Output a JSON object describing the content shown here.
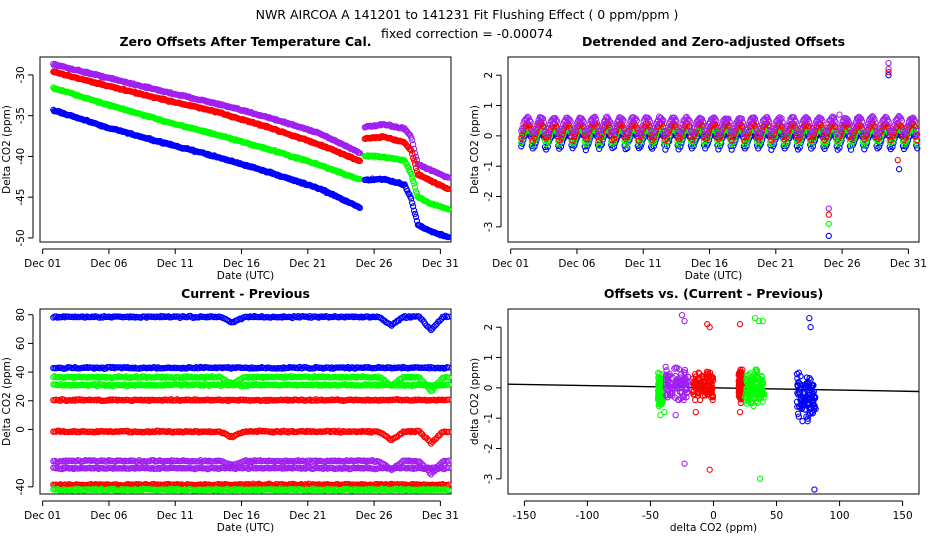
{
  "figure": {
    "title": "NWR   AIRCOA A   141201 to 141231   Fit Flushing Effect ( 0 ppm/ppm )",
    "subtitle": "fixed correction = -0.00074"
  },
  "colors": {
    "blue": "#0000ff",
    "green": "#00ff00",
    "red": "#ff0000",
    "purple": "#a020f0",
    "black": "#000000"
  },
  "chart_data": [
    {
      "id": "p1",
      "type": "scatter",
      "title": "Zero Offsets After Temperature Cal.",
      "xlabel": "Date (UTC)",
      "ylabel": "Delta CO2 (ppm)",
      "xlim": [
        1,
        32
      ],
      "ylim": [
        -50.5,
        -27.8
      ],
      "xticks": [
        {
          "v": 1.2,
          "label": "Dec 01"
        },
        {
          "v": 6.2,
          "label": "Dec 06"
        },
        {
          "v": 11.2,
          "label": "Dec 11"
        },
        {
          "v": 16.2,
          "label": "Dec 16"
        },
        {
          "v": 21.2,
          "label": "Dec 21"
        },
        {
          "v": 26.2,
          "label": "Dec 26"
        },
        {
          "v": 31.2,
          "label": "Dec 31"
        }
      ],
      "yticks": [
        {
          "v": -30,
          "label": "-30"
        },
        {
          "v": -35,
          "label": "-35"
        },
        {
          "v": -40,
          "label": "-40"
        },
        {
          "v": -45,
          "label": "-45"
        },
        {
          "v": -50,
          "label": "-50"
        }
      ],
      "series": [
        {
          "name": "purple",
          "color": "purple",
          "points": [
            [
              2.0,
              -28.7
            ],
            [
              6,
              -30.3
            ],
            [
              10,
              -31.9
            ],
            [
              14,
              -33.4
            ],
            [
              18,
              -35.1
            ],
            [
              22,
              -37.1
            ],
            [
              25.2,
              -39.6
            ],
            [
              25.5,
              -36.4
            ],
            [
              27,
              -36.1
            ],
            [
              28.5,
              -36.6
            ],
            [
              29.0,
              -37.6
            ],
            [
              29.5,
              -41.0
            ],
            [
              30.5,
              -41.7
            ],
            [
              31.8,
              -42.6
            ]
          ]
        },
        {
          "name": "red",
          "color": "red",
          "points": [
            [
              2.0,
              -29.6
            ],
            [
              6,
              -31.3
            ],
            [
              10,
              -32.9
            ],
            [
              14,
              -34.4
            ],
            [
              18,
              -36.3
            ],
            [
              22,
              -38.5
            ],
            [
              25.2,
              -40.6
            ],
            [
              25.5,
              -37.8
            ],
            [
              27,
              -37.6
            ],
            [
              28.5,
              -38.3
            ],
            [
              29.0,
              -39.3
            ],
            [
              29.5,
              -42.2
            ],
            [
              30.5,
              -43.0
            ],
            [
              31.8,
              -44.0
            ]
          ]
        },
        {
          "name": "green",
          "color": "green",
          "points": [
            [
              2.0,
              -31.6
            ],
            [
              6,
              -33.6
            ],
            [
              10,
              -35.5
            ],
            [
              14,
              -37.2
            ],
            [
              18,
              -39.0
            ],
            [
              22,
              -41.0
            ],
            [
              25.2,
              -42.9
            ],
            [
              25.5,
              -39.9
            ],
            [
              27,
              -40.1
            ],
            [
              28.5,
              -40.5
            ],
            [
              29.0,
              -42.2
            ],
            [
              29.5,
              -45.0
            ],
            [
              30.5,
              -45.8
            ],
            [
              31.8,
              -46.5
            ]
          ]
        },
        {
          "name": "blue",
          "color": "blue",
          "points": [
            [
              2.0,
              -34.3
            ],
            [
              6,
              -36.4
            ],
            [
              10,
              -38.2
            ],
            [
              14,
              -39.9
            ],
            [
              18,
              -41.8
            ],
            [
              22,
              -43.9
            ],
            [
              25.2,
              -46.3
            ],
            [
              25.5,
              -42.9
            ],
            [
              27,
              -42.8
            ],
            [
              28.5,
              -43.5
            ],
            [
              29.0,
              -45.2
            ],
            [
              29.5,
              -48.4
            ],
            [
              30.5,
              -49.2
            ],
            [
              31.8,
              -49.9
            ]
          ]
        }
      ]
    },
    {
      "id": "p2",
      "type": "scatter",
      "title": "Detrended and Zero-adjusted Offsets",
      "xlabel": "Date (UTC)",
      "ylabel": "Delta CO2 (ppm)",
      "xlim": [
        1,
        32
      ],
      "ylim": [
        -3.5,
        2.6
      ],
      "xticks": [
        {
          "v": 1.2,
          "label": "Dec 01"
        },
        {
          "v": 6.2,
          "label": "Dec 06"
        },
        {
          "v": 11.2,
          "label": "Dec 11"
        },
        {
          "v": 16.2,
          "label": "Dec 16"
        },
        {
          "v": 21.2,
          "label": "Dec 21"
        },
        {
          "v": 26.2,
          "label": "Dec 26"
        },
        {
          "v": 31.2,
          "label": "Dec 31"
        }
      ],
      "yticks": [
        {
          "v": 2,
          "label": "2"
        },
        {
          "v": 1,
          "label": "1"
        },
        {
          "v": 0,
          "label": "0"
        },
        {
          "v": -1,
          "label": "-1"
        },
        {
          "v": -2,
          "label": "-2"
        },
        {
          "v": -3,
          "label": "-3"
        }
      ],
      "daily_pattern": {
        "start_day": 2,
        "end_day": 32,
        "base": {
          "purple": 0.3,
          "red": 0.1,
          "green": -0.05,
          "blue": -0.2
        },
        "amplitude": 0.45
      },
      "outliers": [
        {
          "color": "purple",
          "points": [
            [
              25.2,
              -2.4
            ],
            [
              29.7,
              2.4
            ],
            [
              29.7,
              2.2
            ],
            [
              25.6,
              0.6
            ],
            [
              26.0,
              0.7
            ]
          ]
        },
        {
          "color": "red",
          "points": [
            [
              25.2,
              -2.6
            ],
            [
              29.7,
              2.1
            ],
            [
              30.4,
              -0.8
            ]
          ]
        },
        {
          "color": "green",
          "points": [
            [
              25.2,
              -2.9
            ],
            [
              25.8,
              0.0
            ]
          ]
        },
        {
          "color": "blue",
          "points": [
            [
              25.2,
              -3.3
            ],
            [
              29.7,
              2.0
            ],
            [
              30.5,
              -1.1
            ]
          ]
        }
      ]
    },
    {
      "id": "p3",
      "type": "scatter",
      "title": "Current - Previous",
      "xlabel": "Date (UTC)",
      "ylabel": "Delta CO2 (ppm)",
      "xlim": [
        1,
        32
      ],
      "ylim": [
        -45,
        84
      ],
      "xticks": [
        {
          "v": 1.2,
          "label": "Dec 01"
        },
        {
          "v": 6.2,
          "label": "Dec 06"
        },
        {
          "v": 11.2,
          "label": "Dec 11"
        },
        {
          "v": 16.2,
          "label": "Dec 16"
        },
        {
          "v": 21.2,
          "label": "Dec 21"
        },
        {
          "v": 26.2,
          "label": "Dec 26"
        },
        {
          "v": 31.2,
          "label": "Dec 31"
        }
      ],
      "yticks": [
        {
          "v": 80,
          "label": "80"
        },
        {
          "v": 60,
          "label": "60"
        },
        {
          "v": 40,
          "label": "40"
        },
        {
          "v": 20,
          "label": "20"
        },
        {
          "v": 0,
          "label": "0"
        },
        {
          "v": -40,
          "label": "-40"
        }
      ],
      "series": [
        {
          "name": "blue-high",
          "color": "blue",
          "level": 78.5,
          "dips": [
            [
              15.5,
              -4
            ],
            [
              27.5,
              -6
            ],
            [
              30.5,
              -9
            ]
          ]
        },
        {
          "name": "blue-low",
          "color": "blue",
          "level": 43,
          "dips": []
        },
        {
          "name": "green-high",
          "color": "green",
          "level": 36.5,
          "dips": [
            [
              15.5,
              -5
            ],
            [
              27.5,
              -6
            ],
            [
              30.5,
              -10
            ]
          ]
        },
        {
          "name": "green-mid",
          "color": "green",
          "level": 31,
          "dips": []
        },
        {
          "name": "red-high",
          "color": "red",
          "level": 20.5,
          "dips": []
        },
        {
          "name": "red-low",
          "color": "red",
          "level": -1.5,
          "dips": [
            [
              15.5,
              -4
            ],
            [
              27.5,
              -6
            ],
            [
              30.5,
              -8
            ]
          ]
        },
        {
          "name": "purple-high",
          "color": "purple",
          "level": -22,
          "dips": [
            [
              15.5,
              -3
            ],
            [
              27.5,
              -6
            ],
            [
              30.5,
              -9
            ]
          ]
        },
        {
          "name": "purple-low",
          "color": "purple",
          "level": -27,
          "dips": []
        },
        {
          "name": "red-bottom",
          "color": "red",
          "level": -38.5,
          "dips": []
        },
        {
          "name": "green-bottom",
          "color": "green",
          "level": -42,
          "dips": []
        }
      ]
    },
    {
      "id": "p4",
      "type": "scatter",
      "title": "Offsets vs. (Current - Previous)",
      "xlabel": "delta CO2 (ppm)",
      "ylabel": "delta CO2 (ppm)",
      "xlim": [
        -163,
        163
      ],
      "ylim": [
        -3.5,
        2.6
      ],
      "xticks": [
        {
          "v": -150,
          "label": "-150"
        },
        {
          "v": -100,
          "label": "-100"
        },
        {
          "v": -50,
          "label": "-50"
        },
        {
          "v": 0,
          "label": "0"
        },
        {
          "v": 50,
          "label": "50"
        },
        {
          "v": 100,
          "label": "100"
        },
        {
          "v": 150,
          "label": "150"
        }
      ],
      "yticks": [
        {
          "v": 2,
          "label": "2"
        },
        {
          "v": 1,
          "label": "1"
        },
        {
          "v": 0,
          "label": "0"
        },
        {
          "v": -1,
          "label": "-1"
        },
        {
          "v": -2,
          "label": "-2"
        },
        {
          "v": -3,
          "label": "-3"
        }
      ],
      "fit_line": {
        "x0": -163,
        "y0": 0.12,
        "x1": 163,
        "y1": -0.12
      },
      "clusters": [
        {
          "color": "green",
          "x_range": [
            -44,
            -40
          ],
          "y_range": [
            -0.6,
            0.5
          ],
          "outliers": [
            [
              -42,
              -0.9
            ],
            [
              -39,
              -0.8
            ]
          ]
        },
        {
          "color": "purple",
          "x_range": [
            -38,
            -20
          ],
          "y_range": [
            -0.5,
            0.7
          ],
          "outliers": [
            [
              -25,
              2.4
            ],
            [
              -23,
              2.2
            ],
            [
              -23,
              -2.5
            ],
            [
              -30,
              -0.9
            ]
          ]
        },
        {
          "color": "red",
          "x_range": [
            -16,
            0
          ],
          "y_range": [
            -0.4,
            0.6
          ],
          "outliers": [
            [
              -5,
              2.1
            ],
            [
              -3,
              2.0
            ],
            [
              -3,
              -2.7
            ],
            [
              -14,
              -0.8
            ]
          ]
        },
        {
          "color": "red",
          "x_range": [
            20,
            23
          ],
          "y_range": [
            -0.5,
            0.6
          ],
          "outliers": [
            [
              21,
              2.1
            ],
            [
              21,
              -0.8
            ]
          ]
        },
        {
          "color": "green",
          "x_range": [
            25,
            40
          ],
          "y_range": [
            -0.6,
            0.6
          ],
          "outliers": [
            [
              33,
              2.3
            ],
            [
              36,
              2.2
            ],
            [
              39,
              2.2
            ],
            [
              37,
              -3.0
            ]
          ]
        },
        {
          "color": "blue",
          "x_range": [
            66,
            81
          ],
          "y_range": [
            -1.1,
            0.5
          ],
          "outliers": [
            [
              76,
              2.3
            ],
            [
              77,
              2.0
            ],
            [
              80,
              -3.35
            ]
          ]
        }
      ]
    }
  ]
}
